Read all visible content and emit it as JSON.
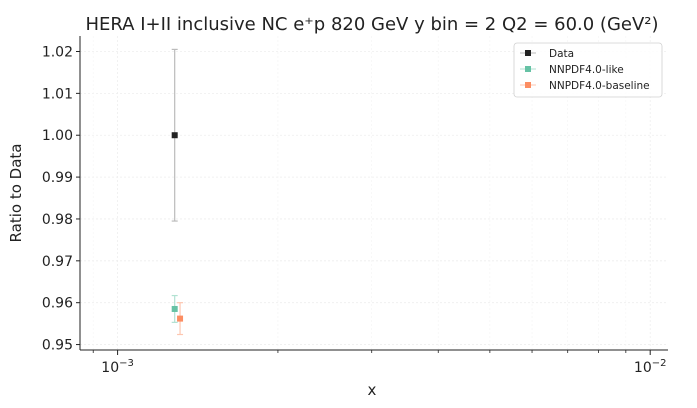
{
  "chart_data": {
    "type": "scatter",
    "title": "HERA I+II inclusive NC e⁺p 820 GeV y bin = 2 Q2 = 60.0 (GeV²)",
    "xlabel": "x",
    "ylabel": "Ratio to Data",
    "x_scale": "log",
    "xlim": [
      0.00085,
      0.0108
    ],
    "ylim": [
      0.9487,
      1.0237
    ],
    "x_ticks": [
      {
        "value": 0.001,
        "base": "10",
        "exp": "−3"
      },
      {
        "value": 0.01,
        "base": "10",
        "exp": "−2"
      }
    ],
    "y_ticks": [
      {
        "value": 0.95,
        "label": "0.95"
      },
      {
        "value": 0.96,
        "label": "0.96"
      },
      {
        "value": 0.97,
        "label": "0.97"
      },
      {
        "value": 0.98,
        "label": "0.98"
      },
      {
        "value": 0.99,
        "label": "0.99"
      },
      {
        "value": 1.0,
        "label": "1.00"
      },
      {
        "value": 1.01,
        "label": "1.01"
      },
      {
        "value": 1.02,
        "label": "1.02"
      }
    ],
    "grid": true,
    "legend_position": "top-right",
    "series": [
      {
        "name": "Data",
        "color": "#222222",
        "errcolor": "#bbbbbb",
        "marker": "square",
        "points": [
          {
            "x": 0.00128,
            "y": 1.0,
            "err": 0.0205
          }
        ]
      },
      {
        "name": "NNPDF4.0-like",
        "color": "#66c2a5",
        "errcolor": "#b2e2d2",
        "marker": "square",
        "points": [
          {
            "x": 0.00128,
            "y": 0.9585,
            "err": 0.0032
          }
        ]
      },
      {
        "name": "NNPDF4.0-baseline",
        "color": "#fc8d62",
        "errcolor": "#fdc6b0",
        "marker": "square",
        "points": [
          {
            "x": 0.00131,
            "y": 0.9562,
            "err": 0.0038
          }
        ]
      }
    ]
  }
}
